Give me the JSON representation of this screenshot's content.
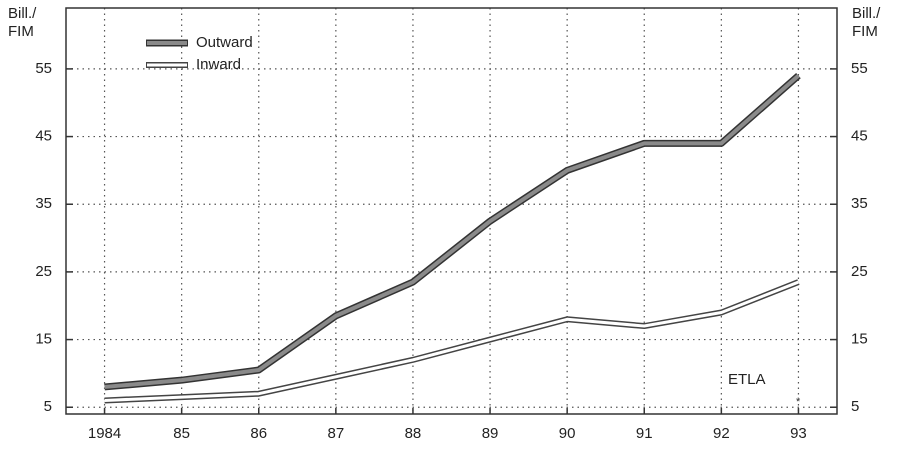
{
  "chart_data": {
    "type": "line",
    "ylabel_lines": [
      "Bill./",
      "FIM"
    ],
    "y2label_lines": [
      "Bill./",
      "FIM"
    ],
    "categories": [
      "1984",
      "85",
      "86",
      "87",
      "88",
      "89",
      "90",
      "91",
      "92",
      "93"
    ],
    "series": [
      {
        "name": "Outward",
        "color": "#8a8a8a",
        "edge": "#333333",
        "values": [
          8,
          9,
          10.5,
          18.5,
          23.5,
          32.5,
          40,
          44,
          44,
          54
        ]
      },
      {
        "name": "Inward",
        "color": "#ffffff",
        "edge": "#444444",
        "values": [
          6,
          6.5,
          7,
          9.5,
          12,
          15,
          18,
          17,
          19,
          23.5
        ]
      }
    ],
    "ylim": [
      4,
      64
    ],
    "yticks": [
      5,
      15,
      25,
      35,
      45,
      55
    ],
    "y2lim": [
      4,
      64
    ],
    "y2ticks": [
      5,
      15,
      25,
      35,
      45,
      55
    ],
    "grid": true,
    "legend": "upper left",
    "annotations": [
      "ETLA",
      "*"
    ]
  }
}
